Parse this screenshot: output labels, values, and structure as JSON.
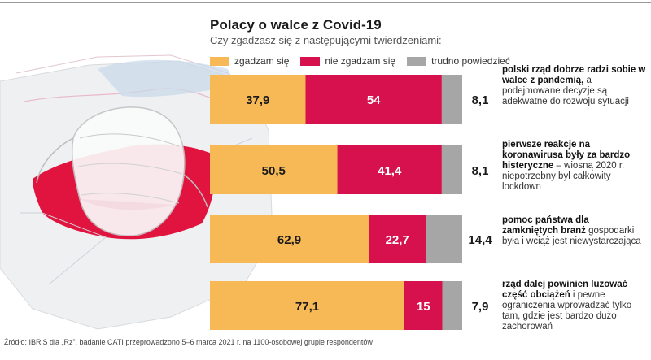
{
  "title": "Polacy o walce z Covid-19",
  "subtitle": "Czy zgadzasz się z następującymi twierdzeniami:",
  "legend": [
    {
      "label": "zgadzam się",
      "color": "#f7b955"
    },
    {
      "label": "nie zgadzam się",
      "color": "#d7114d"
    },
    {
      "label": "trudno powiedzieć",
      "color": "#a6a6a6"
    }
  ],
  "statements": [
    {
      "bold": "polski rząd dobrze radzi sobie w walce z pandemią,",
      "rest": " a podejmowane decyzje są adekwatne do rozwoju sytuacji"
    },
    {
      "bold": "pierwsze reakcje na koronawirusa były za bardzo histeryczne",
      "rest": " – wiosną 2020 r. niepotrzebny był całkowity lockdown"
    },
    {
      "bold": "pomoc państwa dla zamkniętych branż",
      "rest": " gospodarki była i wciąż jest niewystarczająca"
    },
    {
      "bold": "rząd dalej powinien luzować część obciążeń",
      "rest": " i pewne ograniczenia wprowadzać tylko tam, gdzie jest bardzo dużo zachorowań"
    }
  ],
  "source": "Źródło: IBRiS dla „Rz”, badanie CATI przeprowadzono 5–6 marca 2021 r. na 1100-osobowej grupie respondentów",
  "chart_data": {
    "type": "bar",
    "orientation": "horizontal",
    "stacked": true,
    "title": "Polacy o walce z Covid-19",
    "subtitle": "Czy zgadzasz się z następującymi twierdzeniami:",
    "legend_position": "top",
    "categories": [
      "polski rząd dobrze radzi sobie w walce z pandemią, a podejmowane decyzje są adekwatne do rozwoju sytuacji",
      "pierwsze reakcje na koronawirusa były za bardzo histeryczne – wiosną 2020 r. niepotrzebny był całkowity lockdown",
      "pomoc państwa dla zamkniętych branż gospodarki była i wciąż jest niewystarczająca",
      "rząd dalej powinien luzować część obciążeń i pewne ograniczenia wprowadzać tylko tam, gdzie jest bardzo dużo zachorowań"
    ],
    "series": [
      {
        "name": "zgadzam się",
        "color": "#f7b955",
        "values": [
          37.9,
          50.5,
          62.9,
          77.1
        ]
      },
      {
        "name": "nie zgadzam się",
        "color": "#d7114d",
        "values": [
          54,
          41.4,
          22.7,
          15
        ]
      },
      {
        "name": "trudno powiedzieć",
        "color": "#a6a6a6",
        "values": [
          8.1,
          8.1,
          14.4,
          7.9
        ]
      }
    ],
    "value_labels": [
      [
        "37,9",
        "54",
        "8,1"
      ],
      [
        "50,5",
        "41,4",
        "8,1"
      ],
      [
        "62,9",
        "22,7",
        "14,4"
      ],
      [
        "77,1",
        "15",
        "7,9"
      ]
    ],
    "xlim": [
      0,
      100
    ]
  }
}
